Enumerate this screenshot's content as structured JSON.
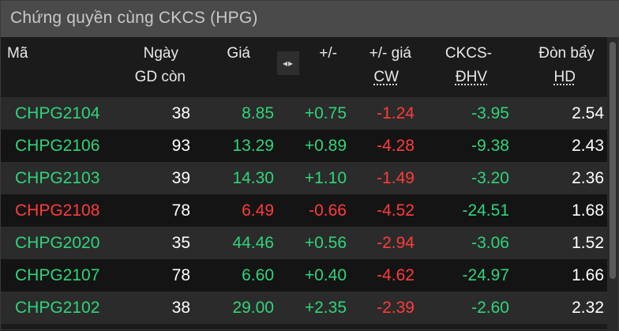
{
  "title": "Chứng quyền cùng CKCS (HPG)",
  "headers": {
    "code": "Mã",
    "days_line1": "Ngày",
    "days_line2": "GD còn",
    "price": "Giá",
    "switch_icon": "◂▸",
    "change": "+/-",
    "cw_change_line1": "+/- giá",
    "cw_change_line2": "CW",
    "ckcs_line1": "CKCS-",
    "ckcs_line2": "ĐHV",
    "lev_line1": "Đòn bẩy",
    "lev_line2": "HD"
  },
  "colors": {
    "up": "#2fd47b",
    "down": "#ff3b3b"
  },
  "rows": [
    {
      "code": "CHPG2104",
      "days": "38",
      "price": "8.85",
      "change": "+0.75",
      "cw_change": "-1.24",
      "ckcs": "-3.95",
      "lev": "2.54",
      "status": "up"
    },
    {
      "code": "CHPG2106",
      "days": "93",
      "price": "13.29",
      "change": "+0.89",
      "cw_change": "-4.28",
      "ckcs": "-9.38",
      "lev": "2.43",
      "status": "up"
    },
    {
      "code": "CHPG2103",
      "days": "39",
      "price": "14.30",
      "change": "+1.10",
      "cw_change": "-1.49",
      "ckcs": "-3.20",
      "lev": "2.36",
      "status": "up"
    },
    {
      "code": "CHPG2108",
      "days": "78",
      "price": "6.49",
      "change": "-0.66",
      "cw_change": "-4.52",
      "ckcs": "-24.51",
      "lev": "1.68",
      "status": "down"
    },
    {
      "code": "CHPG2020",
      "days": "35",
      "price": "44.46",
      "change": "+0.56",
      "cw_change": "-2.94",
      "ckcs": "-3.06",
      "lev": "1.52",
      "status": "up"
    },
    {
      "code": "CHPG2107",
      "days": "78",
      "price": "6.60",
      "change": "+0.40",
      "cw_change": "-4.62",
      "ckcs": "-24.97",
      "lev": "1.66",
      "status": "up"
    },
    {
      "code": "CHPG2102",
      "days": "38",
      "price": "29.00",
      "change": "+2.35",
      "cw_change": "-2.39",
      "ckcs": "-2.60",
      "lev": "2.32",
      "status": "up"
    }
  ]
}
